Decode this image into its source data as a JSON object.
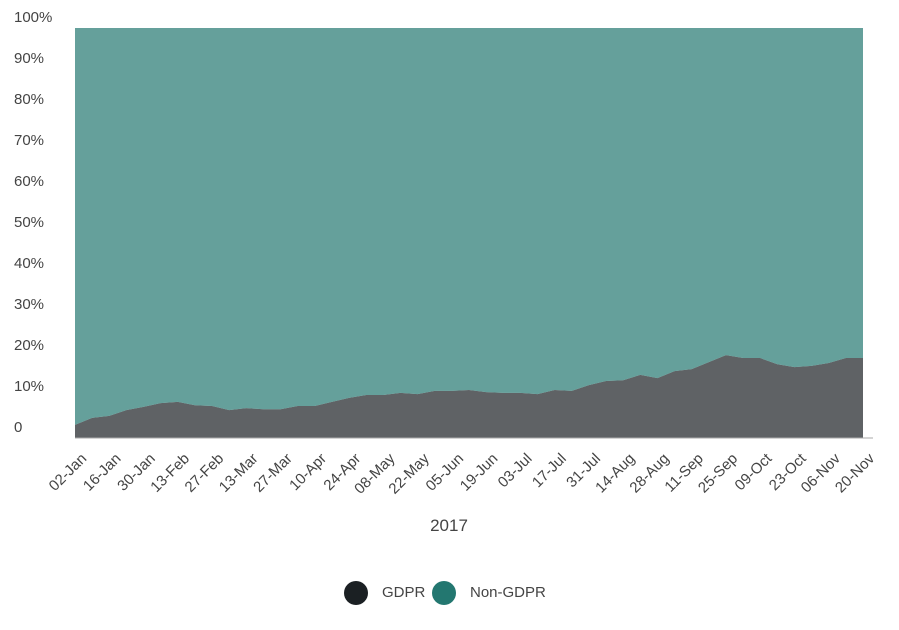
{
  "chart_data": {
    "type": "stacked_area_percent",
    "x_label": "2017",
    "categories": [
      "02-Jan",
      null,
      "16-Jan",
      null,
      "30-Jan",
      null,
      "13-Feb",
      null,
      "27-Feb",
      null,
      "13-Mar",
      null,
      "27-Mar",
      null,
      "10-Apr",
      null,
      "24-Apr",
      null,
      "08-May",
      null,
      "22-May",
      null,
      "05-Jun",
      null,
      "19-Jun",
      null,
      "03-Jul",
      null,
      "17-Jul",
      null,
      "31-Jul",
      null,
      "14-Aug",
      null,
      "28-Aug",
      null,
      "11-Sep",
      null,
      "25-Sep",
      null,
      "09-Oct",
      null,
      "23-Oct",
      null,
      "06-Nov",
      null,
      "20-Nov"
    ],
    "series": [
      {
        "name": "GDPR",
        "color": "#1b2023",
        "values": [
          3.2,
          4.9,
          5.4,
          6.8,
          7.6,
          8.5,
          8.8,
          8.0,
          7.8,
          6.8,
          7.3,
          7.0,
          7.0,
          7.8,
          7.8,
          8.8,
          9.8,
          10.5,
          10.5,
          11.0,
          10.7,
          11.5,
          11.5,
          11.7,
          11.2,
          11.0,
          11.0,
          10.7,
          11.7,
          11.5,
          12.9,
          13.9,
          14.1,
          15.4,
          14.6,
          16.3,
          16.8,
          18.5,
          20.2,
          19.5,
          19.5,
          18.0,
          17.3,
          17.6,
          18.3,
          19.5,
          19.5
        ]
      },
      {
        "name": "Non-GDPR",
        "color": "#237770",
        "values": [
          96.8,
          95.1,
          94.6,
          93.2,
          92.4,
          91.5,
          91.2,
          92.0,
          92.2,
          93.2,
          92.7,
          93.0,
          93.0,
          92.2,
          92.2,
          91.2,
          90.2,
          89.5,
          89.5,
          89.0,
          89.3,
          88.5,
          88.5,
          88.3,
          88.8,
          89.0,
          89.0,
          89.3,
          88.3,
          88.5,
          87.1,
          86.1,
          85.9,
          84.6,
          85.4,
          83.7,
          83.2,
          81.5,
          79.8,
          80.5,
          80.5,
          82.0,
          82.7,
          82.4,
          81.7,
          80.5,
          80.5
        ]
      }
    ],
    "ylim": [
      0,
      100
    ],
    "yticks": [
      0,
      {
        "value": 10,
        "label": "10%"
      },
      {
        "value": 20,
        "label": "20%"
      },
      {
        "value": 30,
        "label": "30%"
      },
      {
        "value": 40,
        "label": "40%"
      },
      {
        "value": 50,
        "label": "50%"
      },
      {
        "value": 60,
        "label": "60%"
      },
      {
        "value": 70,
        "label": "70%"
      },
      {
        "value": 80,
        "label": "80%"
      },
      {
        "value": 90,
        "label": "90%"
      },
      {
        "value": 100,
        "label": "100%"
      }
    ],
    "grid": false,
    "legend": "bottom"
  }
}
